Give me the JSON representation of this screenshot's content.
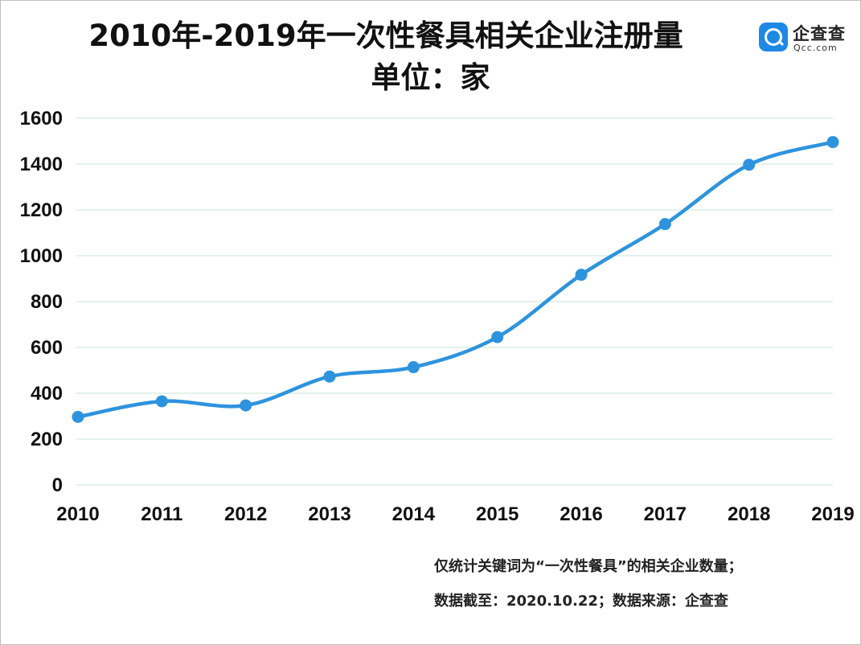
{
  "title": "2010年-2019年一次性餐具相关企业注册量",
  "subtitle": "单位：家",
  "logo": {
    "name": "企查查",
    "domain": "Qcc.com",
    "icon": "magnifier-q-icon",
    "color": "#1e88e5"
  },
  "notes": {
    "line1": "仅统计关键词为“一次性餐具”的相关企业数量；",
    "line2": "数据截至：2020.10.22；数据来源：企查查"
  },
  "chart_data": {
    "type": "line",
    "title": "2010年-2019年一次性餐具相关企业注册量",
    "subtitle": "单位：家",
    "categories": [
      "2010",
      "2011",
      "2012",
      "2013",
      "2014",
      "2015",
      "2016",
      "2017",
      "2018",
      "2019"
    ],
    "series": [
      {
        "values": [
          297,
          365,
          347,
          473,
          514,
          645,
          917,
          1138,
          1397,
          1496
        ],
        "color": "#2e93dd"
      }
    ],
    "ylim": [
      0,
      1600
    ],
    "yticks": [
      0,
      200,
      400,
      600,
      800,
      1000,
      1200,
      1400,
      1600
    ],
    "smooth": true,
    "grid": true,
    "gridColor": "#d9ede3",
    "legend": "none"
  }
}
